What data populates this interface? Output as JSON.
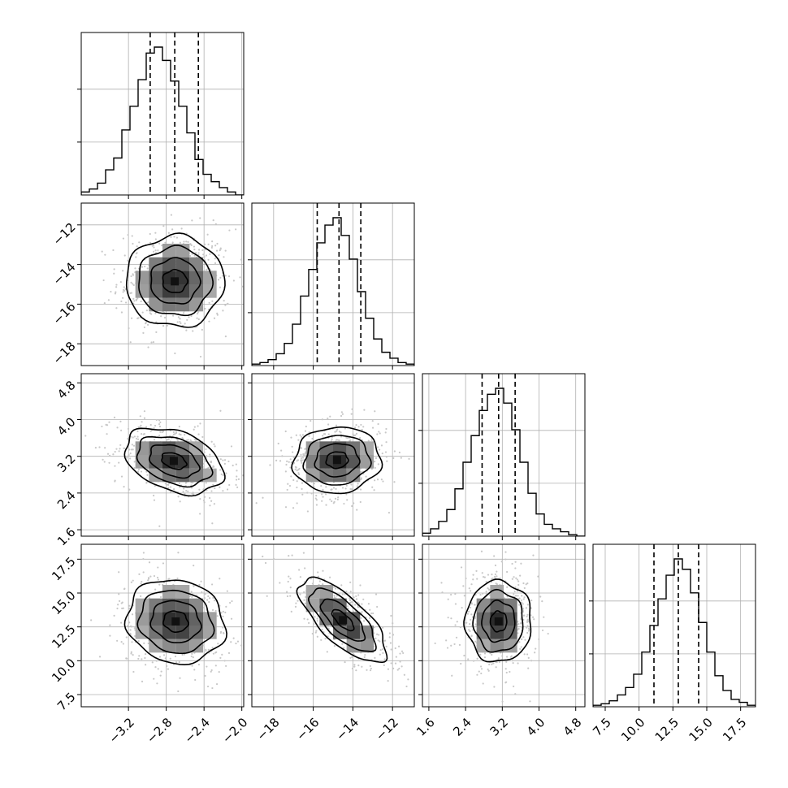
{
  "chart_data": {
    "type": "corner",
    "grid": true,
    "n_params": 4,
    "parameters": [
      {
        "index": 0,
        "range": [
          -3.7,
          -1.98
        ],
        "ticks": [
          -3.2,
          -2.8,
          -2.4,
          -2.0
        ],
        "tick_labels": [
          "−3.2",
          "−2.8",
          "−2.4",
          "−2.0"
        ],
        "quantiles": [
          -2.97,
          -2.71,
          -2.46
        ],
        "hist": [
          0.02,
          0.04,
          0.08,
          0.17,
          0.25,
          0.44,
          0.6,
          0.78,
          0.96,
          1.0,
          0.91,
          0.77,
          0.6,
          0.42,
          0.24,
          0.14,
          0.09,
          0.05,
          0.02,
          0.0
        ]
      },
      {
        "index": 1,
        "range": [
          -19.1,
          -10.9
        ],
        "ticks": [
          -18,
          -16,
          -14,
          -12
        ],
        "tick_labels": [
          "−18",
          "−16",
          "−14",
          "−12"
        ],
        "quantiles": [
          -15.8,
          -14.7,
          -13.6
        ],
        "hist": [
          0.01,
          0.02,
          0.04,
          0.08,
          0.15,
          0.28,
          0.47,
          0.65,
          0.83,
          0.95,
          1.0,
          0.88,
          0.72,
          0.5,
          0.32,
          0.18,
          0.09,
          0.05,
          0.02,
          0.01
        ]
      },
      {
        "index": 2,
        "range": [
          1.46,
          5.0
        ],
        "ticks": [
          1.6,
          2.4,
          3.2,
          4.0,
          4.8
        ],
        "tick_labels": [
          "1.6",
          "2.4",
          "3.2",
          "4.0",
          "4.8"
        ],
        "quantiles": [
          2.76,
          3.12,
          3.48
        ],
        "hist": [
          0.02,
          0.05,
          0.1,
          0.18,
          0.32,
          0.5,
          0.68,
          0.85,
          0.96,
          1.0,
          0.9,
          0.72,
          0.5,
          0.29,
          0.15,
          0.08,
          0.05,
          0.03,
          0.01,
          0.0
        ]
      },
      {
        "index": 3,
        "range": [
          6.6,
          18.6
        ],
        "ticks": [
          7.5,
          10.0,
          12.5,
          15.0,
          17.5
        ],
        "tick_labels": [
          "7.5",
          "10.0",
          "12.5",
          "15.0",
          "17.5"
        ],
        "quantiles": [
          11.1,
          12.9,
          14.4
        ],
        "hist": [
          0.01,
          0.02,
          0.04,
          0.08,
          0.13,
          0.22,
          0.37,
          0.55,
          0.73,
          0.89,
          1.0,
          0.93,
          0.77,
          0.57,
          0.37,
          0.21,
          0.11,
          0.05,
          0.03,
          0.01
        ]
      }
    ],
    "pairs": [
      {
        "row": 1,
        "col": 0,
        "mean": [
          -2.71,
          -14.85
        ],
        "sd": [
          0.26,
          1.15
        ],
        "rho": 0.0
      },
      {
        "row": 2,
        "col": 0,
        "mean": [
          -2.72,
          3.1
        ],
        "sd": [
          0.26,
          0.36
        ],
        "rho": -0.35
      },
      {
        "row": 2,
        "col": 1,
        "mean": [
          -14.8,
          3.12
        ],
        "sd": [
          1.1,
          0.36
        ],
        "rho": 0.05
      },
      {
        "row": 3,
        "col": 0,
        "mean": [
          -2.7,
          12.9
        ],
        "sd": [
          0.26,
          1.55
        ],
        "rho": -0.1
      },
      {
        "row": 3,
        "col": 1,
        "mean": [
          -14.5,
          13.0
        ],
        "sd": [
          1.1,
          1.55
        ],
        "rho": -0.72
      },
      {
        "row": 3,
        "col": 2,
        "mean": [
          3.12,
          12.9
        ],
        "sd": [
          0.36,
          1.5
        ],
        "rho": 0.0
      }
    ],
    "contour_levels_sigma": [
      0.5,
      1.0,
      1.5,
      2.0
    ]
  }
}
